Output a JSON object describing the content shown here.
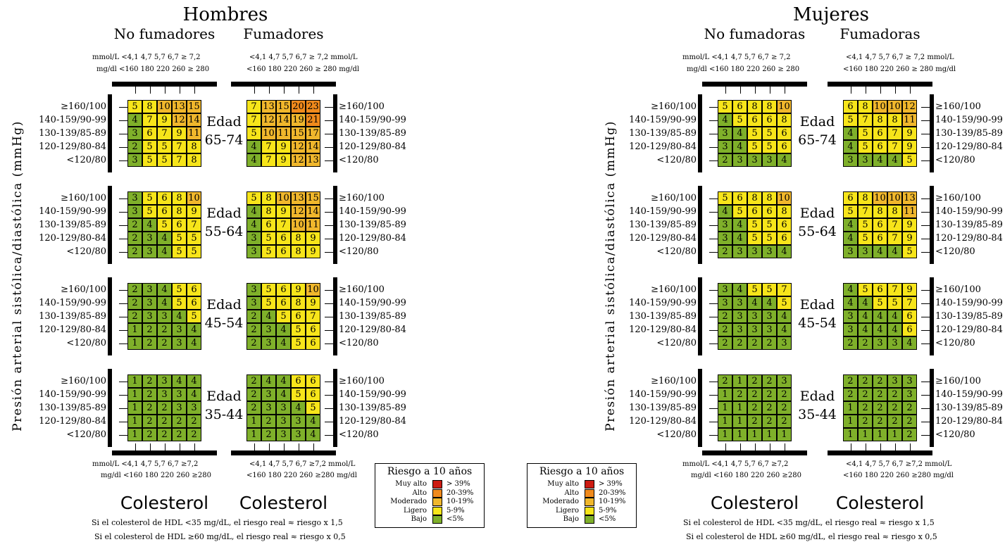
{
  "colors": {
    "bajo": "#7fb02a",
    "ligero": "#f7e51a",
    "moderado": "#f0b72c",
    "alto": "#f08a1c",
    "muy_alto": "#cc1b12"
  },
  "y_axis_label": "Presión arterial sistólica/diastólica (mmHg)",
  "bp_labels": [
    "≥160/100",
    "140-159/90-99",
    "130-139/85-89",
    "120-129/80-84",
    "<120/80"
  ],
  "edad_word": "Edad",
  "age_groups": [
    "65-74",
    "55-64",
    "45-54",
    "35-44"
  ],
  "chol_title": "Colesterol",
  "chol_units": {
    "top_mmol_left": "mmol/L <4,1  4,7  5,7  6,7  ≥ 7,2",
    "top_mgdl_left": "mg/dl  <160 180 220 260 ≥ 280",
    "top_mmol_right": "<4,1  4,7  5,7  6,7  ≥ 7,2  mmol/L",
    "top_mgdl_right": "<160 180 220 260 ≥ 280  mg/dl",
    "bottom_mmol_left": "mmol/L <4,1  4,7  5,7  6,7  ≥7,2",
    "bottom_mgdl_left": "mg/dl  <160 180 220 260 ≥280",
    "bottom_mmol_right": "<4,1  4,7  5,7  6,7  ≥7,2 mmol/L",
    "bottom_mgdl_right": "<160 180 220 260 ≥280 mg/dl"
  },
  "hdl_notes": [
    "Si el colesterol de HDL <35 mg/dL, el riesgo real  ≈  riesgo x 1,5",
    "Si el colesterol de HDL ≥60 mg/dL,  el riesgo real ≈ riesgo x 0,5"
  ],
  "legend": {
    "title": "Riesgo a 10 años",
    "rows": [
      {
        "label": "Muy alto",
        "range": "> 39%",
        "color": "#cc1b12"
      },
      {
        "label": "Alto",
        "range": "20-39%",
        "color": "#f08a1c"
      },
      {
        "label": "Moderado",
        "range": "10-19%",
        "color": "#f0b72c"
      },
      {
        "label": "Ligero",
        "range": "5-9%",
        "color": "#f7e51a"
      },
      {
        "label": "Bajo",
        "range": "<5%",
        "color": "#7fb02a"
      }
    ]
  },
  "men": {
    "title": "Hombres",
    "nonsmoker_label": "No fumadores",
    "smoker_label": "Fumadores",
    "nonsmoker": [
      [
        [
          5,
          8,
          10,
          13,
          15
        ],
        [
          4,
          7,
          9,
          12,
          14
        ],
        [
          3,
          6,
          7,
          9,
          11
        ],
        [
          2,
          5,
          5,
          7,
          8
        ],
        [
          3,
          5,
          5,
          7,
          8
        ]
      ],
      [
        [
          3,
          5,
          6,
          8,
          10
        ],
        [
          3,
          5,
          6,
          8,
          9
        ],
        [
          2,
          4,
          5,
          6,
          7
        ],
        [
          2,
          3,
          4,
          5,
          5
        ],
        [
          2,
          3,
          4,
          5,
          5
        ]
      ],
      [
        [
          2,
          3,
          4,
          5,
          6
        ],
        [
          2,
          3,
          4,
          5,
          6
        ],
        [
          2,
          3,
          3,
          4,
          5
        ],
        [
          1,
          2,
          2,
          3,
          4
        ],
        [
          1,
          2,
          2,
          3,
          4
        ]
      ],
      [
        [
          1,
          2,
          3,
          4,
          4
        ],
        [
          1,
          2,
          3,
          3,
          4
        ],
        [
          1,
          2,
          2,
          3,
          3
        ],
        [
          1,
          2,
          2,
          2,
          2
        ],
        [
          1,
          2,
          2,
          2,
          2
        ]
      ]
    ],
    "smoker": [
      [
        [
          7,
          13,
          15,
          20,
          23
        ],
        [
          7,
          12,
          14,
          19,
          21
        ],
        [
          5,
          10,
          11,
          15,
          17
        ],
        [
          4,
          7,
          9,
          12,
          14
        ],
        [
          4,
          7,
          9,
          12,
          13
        ]
      ],
      [
        [
          5,
          8,
          10,
          13,
          15
        ],
        [
          4,
          8,
          9,
          12,
          14
        ],
        [
          4,
          6,
          7,
          10,
          11
        ],
        [
          3,
          5,
          6,
          8,
          9
        ],
        [
          3,
          5,
          6,
          8,
          9
        ]
      ],
      [
        [
          3,
          5,
          6,
          9,
          10
        ],
        [
          3,
          5,
          6,
          8,
          9
        ],
        [
          2,
          4,
          5,
          6,
          7
        ],
        [
          2,
          3,
          4,
          5,
          6
        ],
        [
          2,
          3,
          4,
          5,
          6
        ]
      ],
      [
        [
          2,
          4,
          4,
          6,
          6
        ],
        [
          2,
          3,
          4,
          5,
          6
        ],
        [
          2,
          3,
          3,
          4,
          5
        ],
        [
          1,
          2,
          3,
          3,
          4
        ],
        [
          1,
          2,
          3,
          3,
          4
        ]
      ]
    ]
  },
  "women": {
    "title": "Mujeres",
    "nonsmoker_label": "No fumadoras",
    "smoker_label": "Fumadoras",
    "nonsmoker": [
      [
        [
          5,
          6,
          8,
          8,
          10
        ],
        [
          4,
          5,
          6,
          6,
          8
        ],
        [
          3,
          4,
          5,
          5,
          6
        ],
        [
          3,
          4,
          5,
          5,
          6
        ],
        [
          2,
          3,
          3,
          3,
          4
        ]
      ],
      [
        [
          5,
          6,
          8,
          8,
          10
        ],
        [
          4,
          5,
          6,
          6,
          8
        ],
        [
          3,
          4,
          5,
          5,
          6
        ],
        [
          3,
          4,
          5,
          5,
          6
        ],
        [
          2,
          3,
          3,
          3,
          4
        ]
      ],
      [
        [
          3,
          4,
          5,
          5,
          7
        ],
        [
          3,
          3,
          4,
          4,
          5
        ],
        [
          2,
          3,
          3,
          3,
          4
        ],
        [
          2,
          3,
          3,
          3,
          4
        ],
        [
          2,
          2,
          2,
          2,
          3
        ]
      ],
      [
        [
          2,
          1,
          2,
          2,
          3
        ],
        [
          1,
          2,
          2,
          2,
          2
        ],
        [
          1,
          1,
          2,
          2,
          2
        ],
        [
          1,
          1,
          2,
          2,
          2
        ],
        [
          1,
          1,
          1,
          1,
          1
        ]
      ]
    ],
    "smoker": [
      [
        [
          6,
          8,
          10,
          10,
          12
        ],
        [
          5,
          7,
          8,
          8,
          11
        ],
        [
          4,
          5,
          6,
          7,
          9
        ],
        [
          4,
          5,
          6,
          7,
          9
        ],
        [
          3,
          3,
          4,
          4,
          5
        ]
      ],
      [
        [
          6,
          8,
          10,
          10,
          13
        ],
        [
          5,
          7,
          8,
          8,
          11
        ],
        [
          4,
          5,
          6,
          7,
          9
        ],
        [
          4,
          5,
          6,
          7,
          9
        ],
        [
          3,
          3,
          4,
          4,
          5
        ]
      ],
      [
        [
          4,
          5,
          6,
          7,
          9
        ],
        [
          4,
          4,
          5,
          5,
          7
        ],
        [
          3,
          4,
          4,
          4,
          6
        ],
        [
          3,
          4,
          4,
          4,
          6
        ],
        [
          2,
          2,
          3,
          3,
          4
        ]
      ],
      [
        [
          2,
          2,
          2,
          3,
          3
        ],
        [
          2,
          2,
          2,
          2,
          3
        ],
        [
          1,
          2,
          2,
          2,
          2
        ],
        [
          1,
          2,
          2,
          2,
          2
        ],
        [
          1,
          1,
          1,
          1,
          2
        ]
      ]
    ]
  }
}
